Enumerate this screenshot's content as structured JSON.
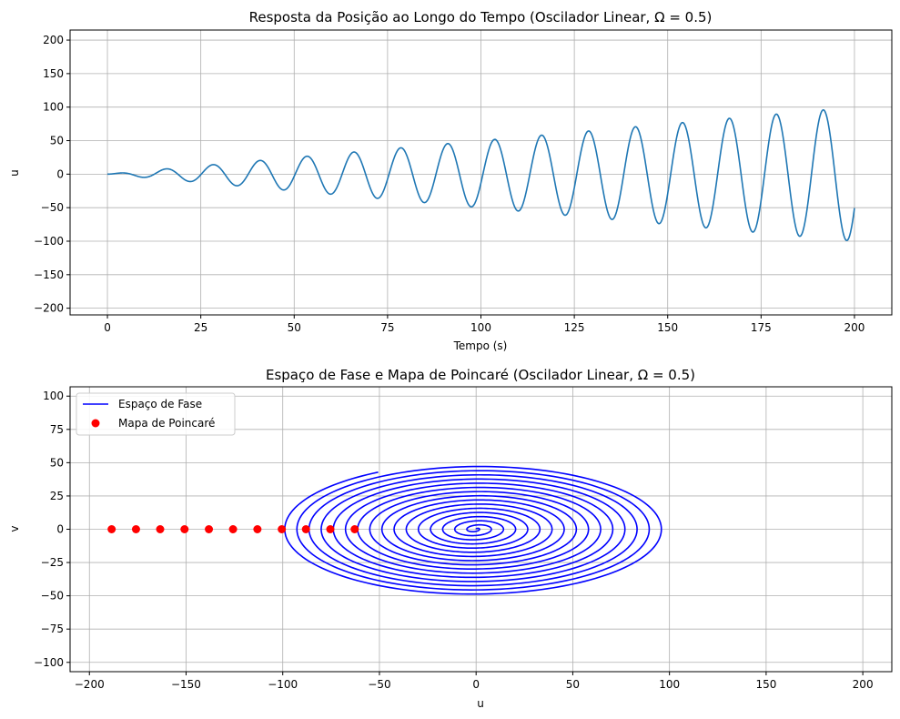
{
  "chart_data": [
    {
      "type": "line",
      "title": "Resposta da Posição ao Longo do Tempo (Oscilador Linear, Ω = 0.5)",
      "xlabel": "Tempo (s)",
      "ylabel": "u",
      "xlim": [
        -10,
        210
      ],
      "ylim": [
        -210,
        215
      ],
      "xticks": [
        0,
        25,
        50,
        75,
        100,
        125,
        150,
        175,
        200
      ],
      "yticks": [
        -200,
        -150,
        -100,
        -50,
        0,
        50,
        100,
        150,
        200
      ],
      "grid": true,
      "line_color": "#1f77b4",
      "series": [
        {
          "description": "u(t) = (t/2)·sin(t/2), t from 0 to 200 (resonant linear oscillator, amplitude grows linearly)",
          "amplitude_factor": 0.5,
          "omega": 0.5,
          "t_range": [
            0,
            200
          ]
        }
      ]
    },
    {
      "type": "scatter",
      "title": "Espaço de Fase e Mapa de Poincaré (Oscilador Linear, Ω = 0.5)",
      "xlabel": "u",
      "ylabel": "v",
      "xlim": [
        -210,
        215
      ],
      "ylim": [
        -107,
        107
      ],
      "xticks": [
        -200,
        -150,
        -100,
        -50,
        0,
        50,
        100,
        150,
        200
      ],
      "yticks": [
        -100,
        -75,
        -50,
        -25,
        0,
        25,
        50,
        75,
        100
      ],
      "grid": true,
      "legend_position": "top-left",
      "series": [
        {
          "name": "Espaço de Fase",
          "kind": "line",
          "color": "#0000ff",
          "description": "v = du/dt = (1/2)sin(t/2) + (t/4)cos(t/2), t from 0 to 200"
        },
        {
          "name": "Mapa de Poincaré",
          "kind": "scatter",
          "color": "#ff0000",
          "points": [
            {
              "u": -62.8,
              "v": 0
            },
            {
              "u": -75.4,
              "v": 0
            },
            {
              "u": -88.0,
              "v": 0
            },
            {
              "u": -100.5,
              "v": 0
            },
            {
              "u": -113.1,
              "v": 0
            },
            {
              "u": -125.7,
              "v": 0
            },
            {
              "u": -138.2,
              "v": 0
            },
            {
              "u": -150.8,
              "v": 0
            },
            {
              "u": -163.4,
              "v": 0
            },
            {
              "u": -175.9,
              "v": 0
            },
            {
              "u": -188.5,
              "v": 0
            }
          ]
        }
      ]
    }
  ]
}
